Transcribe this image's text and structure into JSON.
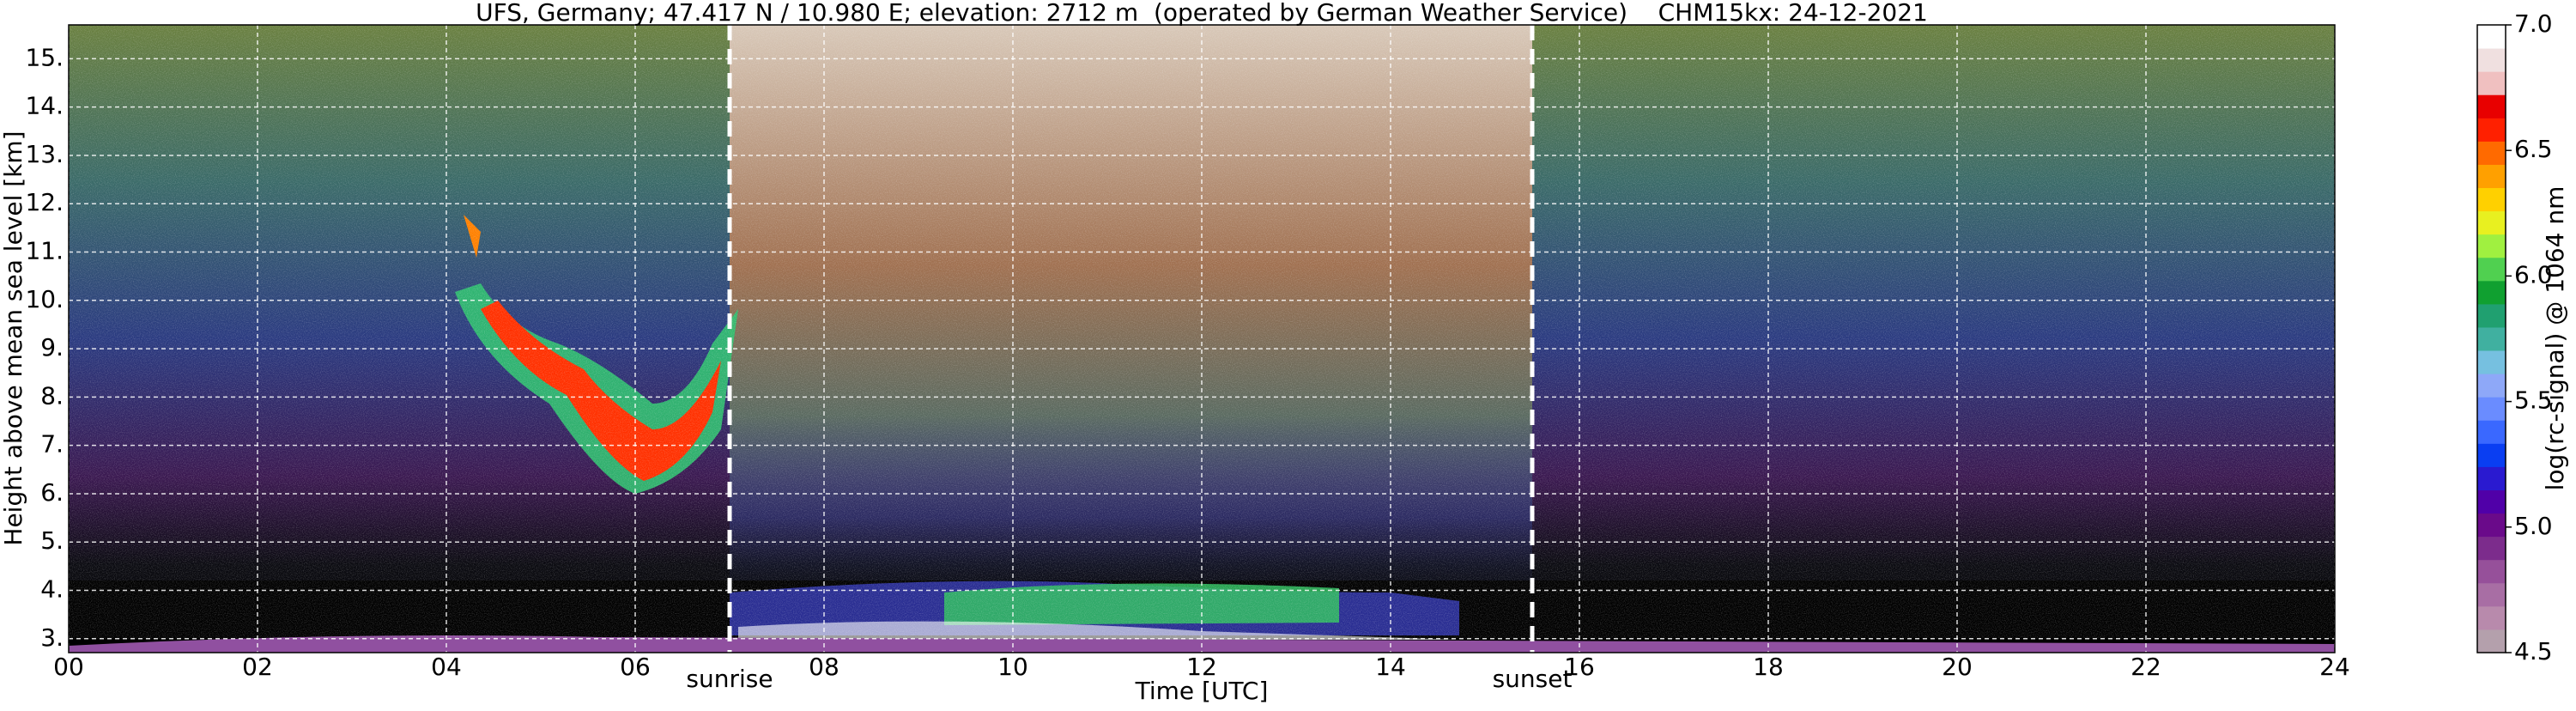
{
  "chart_data": {
    "type": "heatmap",
    "title": "UFS, Germany; 47.417 N / 10.980 E; elevation: 2712 m  (operated by German Weather Service)    CHM15kx: 24-12-2021",
    "x_label": "Time [UTC]",
    "y_label": "Height above mean sea level [km]",
    "xlim": [
      0,
      24
    ],
    "xticks": [
      {
        "value": 0,
        "label": "00"
      },
      {
        "value": 2,
        "label": "02"
      },
      {
        "value": 4,
        "label": "04"
      },
      {
        "value": 6,
        "label": "06"
      },
      {
        "value": 8,
        "label": "08"
      },
      10,
      12,
      14,
      16,
      18,
      20,
      22,
      24
    ],
    "ylim": [
      2.712,
      15.7
    ],
    "yticks": [
      {
        "value": 3,
        "label": "3."
      },
      {
        "value": 4,
        "label": "4."
      },
      {
        "value": 5,
        "label": "5."
      },
      {
        "value": 6,
        "label": "6."
      },
      {
        "value": 7,
        "label": "7."
      },
      {
        "value": 8,
        "label": "8."
      },
      {
        "value": 9,
        "label": "9."
      },
      {
        "value": 10,
        "label": "10."
      },
      {
        "value": 11,
        "label": "11."
      },
      {
        "value": 12,
        "label": "12."
      },
      {
        "value": 13,
        "label": "13."
      },
      {
        "value": 14,
        "label": "14."
      },
      {
        "value": 15,
        "label": "15."
      }
    ],
    "grid": true,
    "annotations": [
      {
        "text": "sunrise",
        "x": 7.0
      },
      {
        "text": "sunset",
        "x": 15.5
      }
    ],
    "colorbar": {
      "label": "log(rc-signal) @ 1064 nm",
      "lim": [
        4.5,
        7.0
      ],
      "ticks": [
        {
          "value": 4.5,
          "label": "4.5"
        },
        {
          "value": 5.0,
          "label": "5.0"
        },
        {
          "value": 5.5,
          "label": "5.5"
        },
        {
          "value": 6.0,
          "label": "6.0"
        },
        {
          "value": 6.5,
          "label": "6.5"
        },
        {
          "value": 7.0,
          "label": "7.0"
        }
      ],
      "colors": [
        "#b4a0ac",
        "#b88aac",
        "#a86ea4",
        "#96509a",
        "#7c2c8c",
        "#6a0a8a",
        "#5000a8",
        "#2a1ad0",
        "#0a3ef2",
        "#3a68ff",
        "#6a8cff",
        "#8ea8f8",
        "#76c0e0",
        "#40b0a0",
        "#20a070",
        "#10a030",
        "#50d050",
        "#a0f040",
        "#e8f020",
        "#ffd000",
        "#ffa000",
        "#ff6a00",
        "#ff2000",
        "#e80000",
        "#f0c0c0",
        "#f0e0e0",
        "#ffffff"
      ]
    }
  }
}
